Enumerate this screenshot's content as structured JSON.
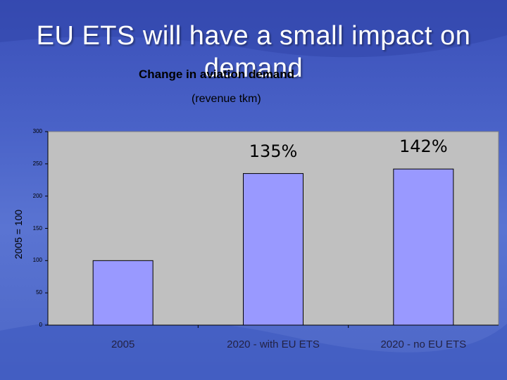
{
  "slide": {
    "title": "EU ETS will have a small impact on demand"
  },
  "chart_data": {
    "type": "bar",
    "title": "Change in aviation demand",
    "subtitle": "(revenue tkm)",
    "ylabel": "2005 = 100",
    "xlabel": "",
    "categories": [
      "2005",
      "2020 - with EU ETS",
      "2020 - no EU ETS"
    ],
    "values": [
      100,
      235,
      242
    ],
    "data_labels": [
      "",
      "135%",
      "142%"
    ],
    "ylim": [
      0,
      300
    ],
    "yticks": [
      0,
      50,
      100,
      150,
      200,
      250,
      300
    ],
    "ytick_labels": [
      "0",
      "50",
      "100",
      "150",
      "200",
      "250",
      "300"
    ],
    "bar_color": "#9999ff",
    "plot_bg": "#c0c0c0",
    "grid": false,
    "legend": "none"
  }
}
